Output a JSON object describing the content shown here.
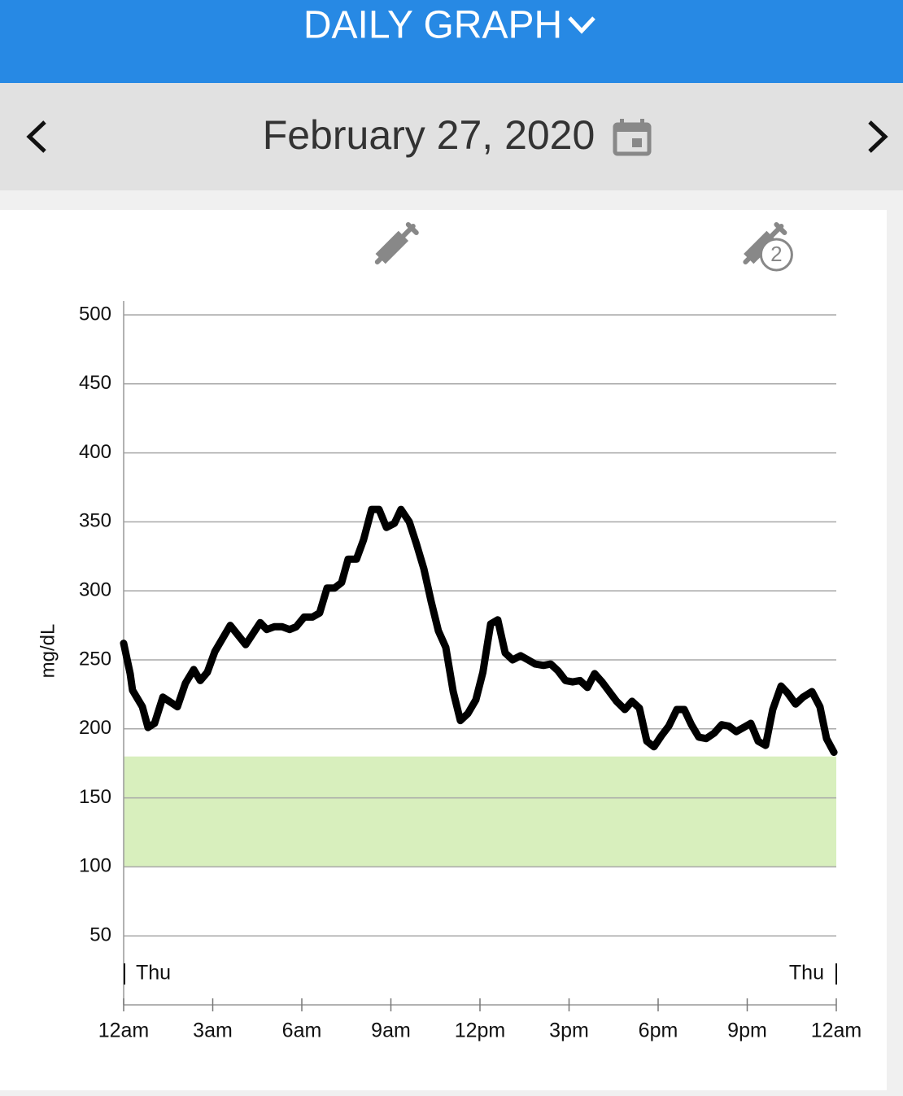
{
  "header": {
    "title": "DAILY GRAPH",
    "date": "February 27, 2020"
  },
  "chart_data": {
    "type": "line",
    "y_label": "mg/dL",
    "x": [
      0,
      0.22,
      0.3,
      0.63,
      0.82,
      1.04,
      1.32,
      1.81,
      2.08,
      2.36,
      2.58,
      2.82,
      3.07,
      3.59,
      4.11,
      4.6,
      4.82,
      5.07,
      5.34,
      5.59,
      5.81,
      6.08,
      6.36,
      6.6,
      6.85,
      7.1,
      7.34,
      7.56,
      7.84,
      8.08,
      8.35,
      8.6,
      8.85,
      9.12,
      9.34,
      9.62,
      9.86,
      10.11,
      10.36,
      10.6,
      10.85,
      11.1,
      11.34,
      11.59,
      11.86,
      12.1,
      12.36,
      12.6,
      12.85,
      13.1,
      13.37,
      13.62,
      13.86,
      14.14,
      14.38,
      14.63,
      14.88,
      15.12,
      15.37,
      15.62,
      15.86,
      16.11,
      16.6,
      16.88,
      17.12,
      17.37,
      17.62,
      17.86,
      18.11,
      18.36,
      18.63,
      18.88,
      19.12,
      19.37,
      19.62,
      19.89,
      20.14,
      20.38,
      20.63,
      20.88,
      21.12,
      21.37,
      21.62,
      21.86,
      22.14,
      22.36,
      22.63,
      22.88,
      23.18,
      23.45,
      23.67,
      23.92
    ],
    "series": [
      {
        "color": "#000000",
        "values": [
          262,
          240,
          228,
          216,
          201,
          204,
          223,
          216,
          233,
          243,
          235,
          241,
          256,
          275,
          261,
          277,
          272,
          274,
          274,
          272,
          274,
          281,
          281,
          284,
          302,
          302,
          306,
          323,
          323,
          337,
          359,
          359,
          346,
          349,
          359,
          350,
          334,
          316,
          292,
          271,
          259,
          227,
          206,
          211,
          221,
          241,
          276,
          279,
          255,
          250,
          253,
          250,
          247,
          246,
          247,
          242,
          235,
          234,
          235,
          230,
          240,
          234,
          220,
          214,
          220,
          215,
          191,
          187,
          195,
          202,
          214,
          214,
          203,
          194,
          193,
          197,
          203,
          202,
          198,
          201,
          204,
          191,
          188,
          214,
          231,
          226,
          218,
          223,
          227,
          216,
          193,
          183
        ]
      }
    ],
    "xlim": [
      0,
      24
    ],
    "xticks": [
      {
        "value": 0,
        "label": "12am"
      },
      {
        "value": 3,
        "label": "3am"
      },
      {
        "value": 6,
        "label": "6am"
      },
      {
        "value": 9,
        "label": "9am"
      },
      {
        "value": 12,
        "label": "12pm"
      },
      {
        "value": 15,
        "label": "3pm"
      },
      {
        "value": 18,
        "label": "6pm"
      },
      {
        "value": 21,
        "label": "9pm"
      },
      {
        "value": 24,
        "label": "12am"
      }
    ],
    "ylim": [
      0,
      510
    ],
    "yticks": [
      50,
      100,
      150,
      200,
      250,
      300,
      350,
      400,
      450,
      500
    ],
    "grid": true,
    "target_range": [
      100,
      180
    ],
    "target_color": "#d8efbd",
    "day_labels": [
      {
        "x": 0,
        "label": "Thu"
      },
      {
        "x": 24,
        "label": "Thu"
      }
    ],
    "events": [
      {
        "x": 9.2
      },
      {
        "x": 21.6,
        "label": "2"
      }
    ]
  }
}
